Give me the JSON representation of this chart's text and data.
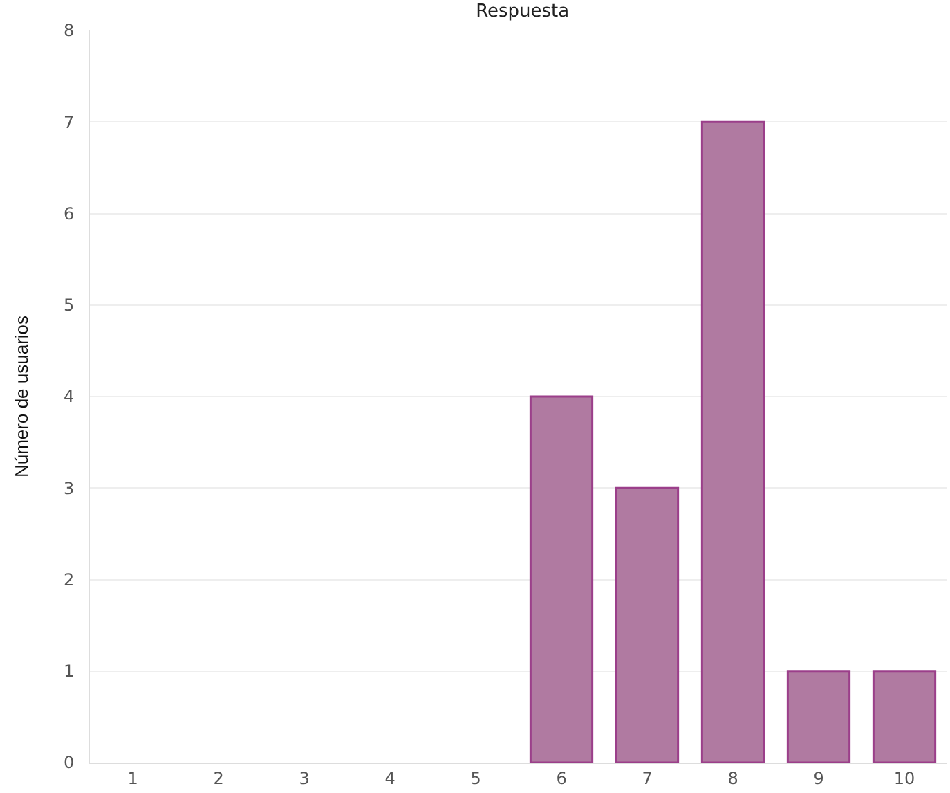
{
  "chart_data": {
    "type": "bar",
    "title": "Respuesta",
    "ylabel": "Número de usuarios",
    "categories": [
      "1",
      "2",
      "3",
      "4",
      "5",
      "6",
      "7",
      "8",
      "9",
      "10"
    ],
    "values": [
      0,
      0,
      0,
      0,
      0,
      4,
      3,
      7,
      1,
      1
    ],
    "color": "#b07aa1",
    "ylim": [
      0,
      8
    ],
    "yticks": [
      0,
      1,
      2,
      3,
      4,
      5,
      6,
      7,
      8
    ],
    "grid": "y"
  }
}
